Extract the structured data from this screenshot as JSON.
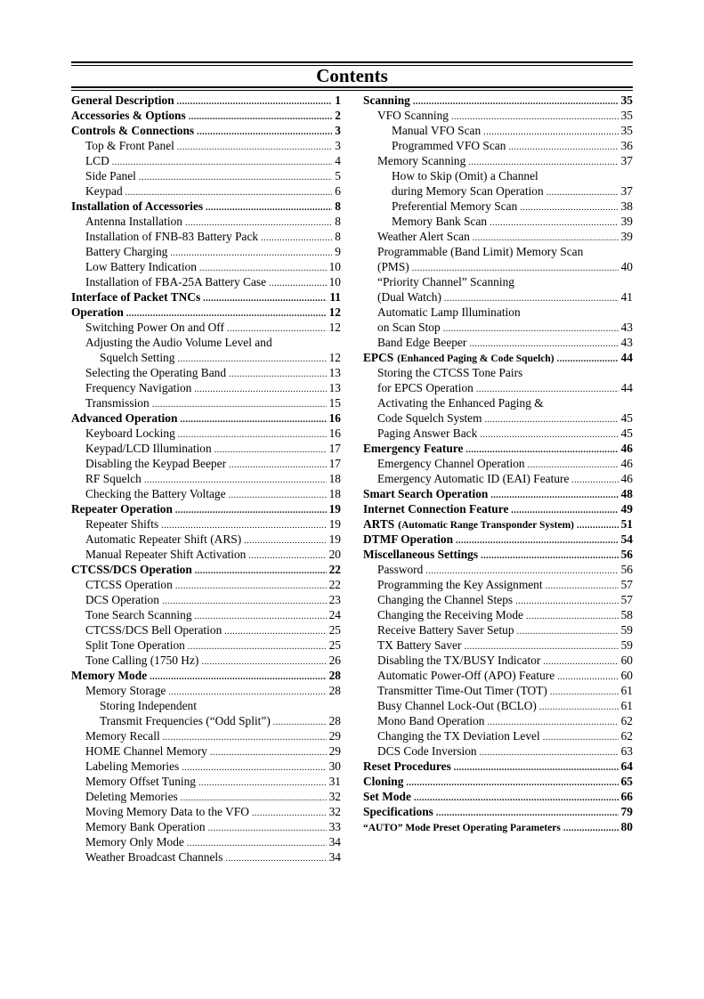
{
  "title": "Contents",
  "columns": [
    [
      {
        "l": 0,
        "t": "General Description",
        "p": "1"
      },
      {
        "l": 0,
        "t": "Accessories & Options",
        "p": "2"
      },
      {
        "l": 0,
        "t": "Controls & Connections",
        "p": "3"
      },
      {
        "l": 1,
        "t": "Top & Front Panel",
        "p": "3"
      },
      {
        "l": 1,
        "t": "LCD",
        "p": "4"
      },
      {
        "l": 1,
        "t": "Side Panel",
        "p": "5"
      },
      {
        "l": 1,
        "t": "Keypad",
        "p": "6"
      },
      {
        "l": 0,
        "t": "Installation of Accessories",
        "p": "8"
      },
      {
        "l": 1,
        "t": "Antenna Installation",
        "p": "8"
      },
      {
        "l": 1,
        "t": "Installation of FNB-83 Battery Pack",
        "p": "8"
      },
      {
        "l": 1,
        "t": "Battery Charging",
        "p": "9"
      },
      {
        "l": 1,
        "t": "Low Battery Indication",
        "p": "10"
      },
      {
        "l": 1,
        "t": "Installation of FBA-25A Battery Case",
        "p": "10"
      },
      {
        "l": 0,
        "t": "Interface of Packet TNCs",
        "p": "11"
      },
      {
        "l": 0,
        "t": "Operation",
        "p": "12"
      },
      {
        "l": 1,
        "t": "Switching Power On and Off",
        "p": "12"
      },
      {
        "l": 1,
        "t": "Adjusting the Audio Volume Level and"
      },
      {
        "l": 2,
        "t": "Squelch Setting",
        "p": "12"
      },
      {
        "l": 1,
        "t": "Selecting the Operating Band",
        "p": "13"
      },
      {
        "l": 1,
        "t": "Frequency Navigation",
        "p": "13"
      },
      {
        "l": 1,
        "t": "Transmission",
        "p": "15"
      },
      {
        "l": 0,
        "t": "Advanced Operation",
        "p": "16"
      },
      {
        "l": 1,
        "t": "Keyboard Locking",
        "p": "16"
      },
      {
        "l": 1,
        "t": "Keypad/LCD Illumination",
        "p": "17"
      },
      {
        "l": 1,
        "t": "Disabling the Keypad Beeper",
        "p": "17"
      },
      {
        "l": 1,
        "t": "RF Squelch",
        "p": "18"
      },
      {
        "l": 1,
        "t": "Checking the Battery Voltage",
        "p": "18"
      },
      {
        "l": 0,
        "t": "Repeater Operation",
        "p": "19"
      },
      {
        "l": 1,
        "t": "Repeater Shifts",
        "p": "19"
      },
      {
        "l": 1,
        "t": "Automatic Repeater Shift (ARS)",
        "p": "19"
      },
      {
        "l": 1,
        "t": "Manual Repeater Shift Activation",
        "p": "20"
      },
      {
        "l": 0,
        "t": "CTCSS/DCS Operation",
        "p": "22"
      },
      {
        "l": 1,
        "t": "CTCSS Operation",
        "p": "22"
      },
      {
        "l": 1,
        "t": "DCS Operation",
        "p": "23"
      },
      {
        "l": 1,
        "t": "Tone Search Scanning",
        "p": "24"
      },
      {
        "l": 1,
        "t": "CTCSS/DCS Bell Operation",
        "p": "25"
      },
      {
        "l": 1,
        "t": "Split Tone Operation",
        "p": "25"
      },
      {
        "l": 1,
        "t": "Tone Calling (1750 Hz)",
        "p": "26"
      },
      {
        "l": 0,
        "t": "Memory Mode",
        "p": "28"
      },
      {
        "l": 1,
        "t": "Memory Storage",
        "p": "28"
      },
      {
        "l": 2,
        "t": "Storing Independent"
      },
      {
        "l": 2,
        "t": "Transmit Frequencies (“Odd Split”)",
        "p": "28"
      },
      {
        "l": 1,
        "t": "Memory Recall",
        "p": "29"
      },
      {
        "l": 1,
        "t": "HOME Channel Memory",
        "p": "29"
      },
      {
        "l": 1,
        "t": "Labeling Memories",
        "p": "30"
      },
      {
        "l": 1,
        "t": "Memory Offset Tuning",
        "p": "31"
      },
      {
        "l": 1,
        "t": "Deleting Memories",
        "p": "32"
      },
      {
        "l": 1,
        "t": "Moving Memory Data to the VFO",
        "p": "32"
      },
      {
        "l": 1,
        "t": "Memory Bank Operation",
        "p": "33"
      },
      {
        "l": 1,
        "t": "Memory Only Mode",
        "p": "34"
      },
      {
        "l": 1,
        "t": "Weather Broadcast Channels",
        "p": "34"
      }
    ],
    [
      {
        "l": 0,
        "t": "Scanning",
        "p": "35"
      },
      {
        "l": 1,
        "t": "VFO Scanning",
        "p": "35"
      },
      {
        "l": 2,
        "t": "Manual VFO Scan",
        "p": "35"
      },
      {
        "l": 2,
        "t": "Programmed VFO Scan",
        "p": "36"
      },
      {
        "l": 1,
        "t": "Memory Scanning",
        "p": "37"
      },
      {
        "l": 2,
        "t": "How to Skip (Omit) a Channel"
      },
      {
        "l": 2,
        "t": "during Memory Scan Operation",
        "p": "37"
      },
      {
        "l": 2,
        "t": "Preferential Memory Scan",
        "p": "38"
      },
      {
        "l": 2,
        "t": "Memory Bank Scan",
        "p": "39"
      },
      {
        "l": 1,
        "t": "Weather Alert Scan",
        "p": "39"
      },
      {
        "l": 1,
        "t": "Programmable (Band Limit) Memory Scan"
      },
      {
        "l": 1,
        "t": "(PMS)",
        "p": "40"
      },
      {
        "l": 1,
        "t": "“Priority Channel” Scanning"
      },
      {
        "l": 1,
        "t": "(Dual Watch)",
        "p": "41"
      },
      {
        "l": 1,
        "t": "Automatic Lamp Illumination"
      },
      {
        "l": 1,
        "t": "on Scan Stop",
        "p": "43"
      },
      {
        "l": 1,
        "t": "Band Edge Beeper",
        "p": "43"
      },
      {
        "l": 0,
        "t": "EPCS",
        "s": "(Enhanced Paging & Code Squelch)",
        "p": "44"
      },
      {
        "l": 1,
        "t": "Storing the CTCSS Tone Pairs"
      },
      {
        "l": 1,
        "t": "for EPCS Operation",
        "p": "44"
      },
      {
        "l": 1,
        "t": "Activating the Enhanced Paging &"
      },
      {
        "l": 1,
        "t": "Code Squelch System",
        "p": "45"
      },
      {
        "l": 1,
        "t": "Paging Answer Back",
        "p": "45"
      },
      {
        "l": 0,
        "t": "Emergency Feature",
        "p": "46"
      },
      {
        "l": 1,
        "t": "Emergency Channel Operation",
        "p": "46"
      },
      {
        "l": 1,
        "t": "Emergency Automatic ID (EAI) Feature",
        "p": "46"
      },
      {
        "l": 0,
        "t": "Smart Search Operation",
        "p": "48"
      },
      {
        "l": 0,
        "t": "Internet Connection Feature",
        "p": "49"
      },
      {
        "l": 0,
        "t": "ARTS",
        "s": "(Automatic Range Transponder System)",
        "p": "51"
      },
      {
        "l": 0,
        "t": "DTMF Operation",
        "p": "54"
      },
      {
        "l": 0,
        "t": "Miscellaneous Settings",
        "p": "56"
      },
      {
        "l": 1,
        "t": "Password",
        "p": "56"
      },
      {
        "l": 1,
        "t": "Programming the Key Assignment",
        "p": "57"
      },
      {
        "l": 1,
        "t": "Changing the Channel Steps",
        "p": "57"
      },
      {
        "l": 1,
        "t": "Changing the Receiving Mode",
        "p": "58"
      },
      {
        "l": 1,
        "t": "Receive Battery Saver Setup",
        "p": "59"
      },
      {
        "l": 1,
        "t": "TX Battery Saver",
        "p": "59"
      },
      {
        "l": 1,
        "t": "Disabling the TX/BUSY Indicator",
        "p": "60"
      },
      {
        "l": 1,
        "t": "Automatic Power-Off (APO) Feature",
        "p": "60"
      },
      {
        "l": 1,
        "t": "Transmitter Time-Out Timer (TOT)",
        "p": "61"
      },
      {
        "l": 1,
        "t": "Busy Channel Lock-Out (BCLO)",
        "p": "61"
      },
      {
        "l": 1,
        "t": "Mono Band Operation",
        "p": "62"
      },
      {
        "l": 1,
        "t": "Changing the TX Deviation Level",
        "p": "62"
      },
      {
        "l": 1,
        "t": "DCS Code Inversion",
        "p": "63"
      },
      {
        "l": 0,
        "t": "Reset Procedures",
        "p": "64"
      },
      {
        "l": 0,
        "t": "Cloning",
        "p": "65"
      },
      {
        "l": 0,
        "t": "Set Mode",
        "p": "66"
      },
      {
        "l": 0,
        "t": "Specifications",
        "p": "79"
      },
      {
        "l": 0,
        "t": "“AUTO” Mode Preset Operating Parameters",
        "p": "80",
        "small": true
      }
    ]
  ]
}
